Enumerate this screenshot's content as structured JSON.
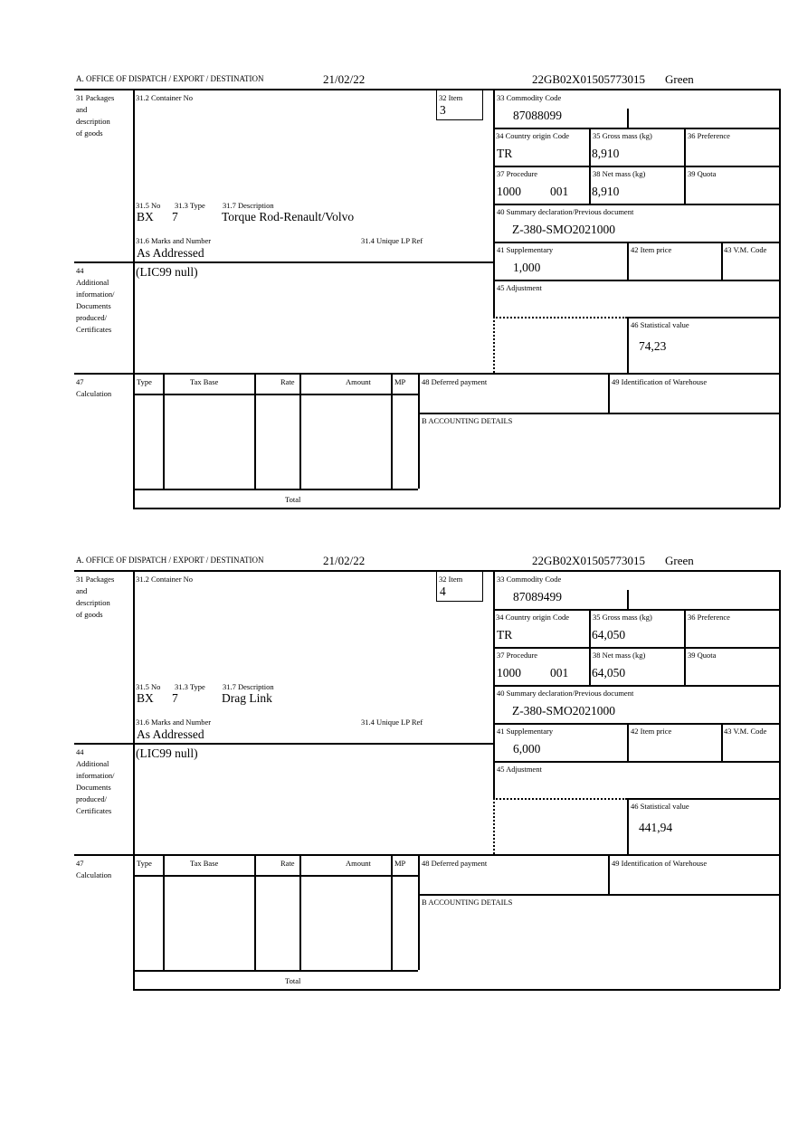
{
  "labels": {
    "office": "A. OFFICE OF DISPATCH / EXPORT / DESTINATION",
    "packages": [
      "31 Packages",
      "and",
      "description",
      "of goods"
    ],
    "container_no": "31.2 Container No",
    "item": "32 Item",
    "commodity_code": "33 Commodity Code",
    "country_origin": "34 Country origin Code",
    "gross_mass": "35 Gross mass (kg)",
    "preference": "36 Preference",
    "procedure": "37 Procedure",
    "net_mass": "38 Net mass (kg)",
    "quota": "39 Quota",
    "summary_declaration": "40 Summary declaration/Previous document",
    "supplementary": "41 Supplementary",
    "item_price": "42 Item price",
    "vm_code": "43 V.M. Code",
    "adjustment": "45 Adjustment",
    "statistical_value": "46 Statistical value",
    "pkg_no": "31.5 No",
    "pkg_type": "31.3 Type",
    "description": "31.7 Description",
    "marks": "31.6 Marks and Number",
    "unique_lp_ref": "31.4 Unique LP Ref",
    "additional_info": [
      "44",
      "Additional",
      "information/",
      "Documents",
      "produced/",
      "Certificates"
    ],
    "calculation": [
      "47",
      "Calculation"
    ],
    "calc_columns": [
      "Type",
      "Tax Base",
      "Rate",
      "Amount",
      "MP"
    ],
    "total": "Total",
    "deferred_payment": "48 Deferred payment",
    "warehouse": "49 Identification of Warehouse",
    "accounting": "B ACCOUNTING DETAILS"
  },
  "blocks": [
    {
      "date": "21/02/22",
      "reference": "22GB02X01505773015",
      "route": "Green",
      "item": "3",
      "commodity_code": "87088099",
      "country_origin": "TR",
      "gross_mass": "8,910",
      "procedure": "1000",
      "procedure_extra": "001",
      "net_mass": "8,910",
      "summary_declaration": "Z-380-SMO2021000",
      "supplementary": "1,000",
      "statistical_value": "74,23",
      "pkg_no": "BX",
      "pkg_type": "7",
      "description": "Torque Rod-Renault/Volvo",
      "marks": "As Addressed",
      "additional_info": "(LIC99 null)"
    },
    {
      "date": "21/02/22",
      "reference": "22GB02X01505773015",
      "route": "Green",
      "item": "4",
      "commodity_code": "87089499",
      "country_origin": "TR",
      "gross_mass": "64,050",
      "procedure": "1000",
      "procedure_extra": "001",
      "net_mass": "64,050",
      "summary_declaration": "Z-380-SMO2021000",
      "supplementary": "6,000",
      "statistical_value": "441,94",
      "pkg_no": "BX",
      "pkg_type": "7",
      "description": "Drag Link",
      "marks": "As Addressed",
      "additional_info": "(LIC99 null)"
    }
  ]
}
